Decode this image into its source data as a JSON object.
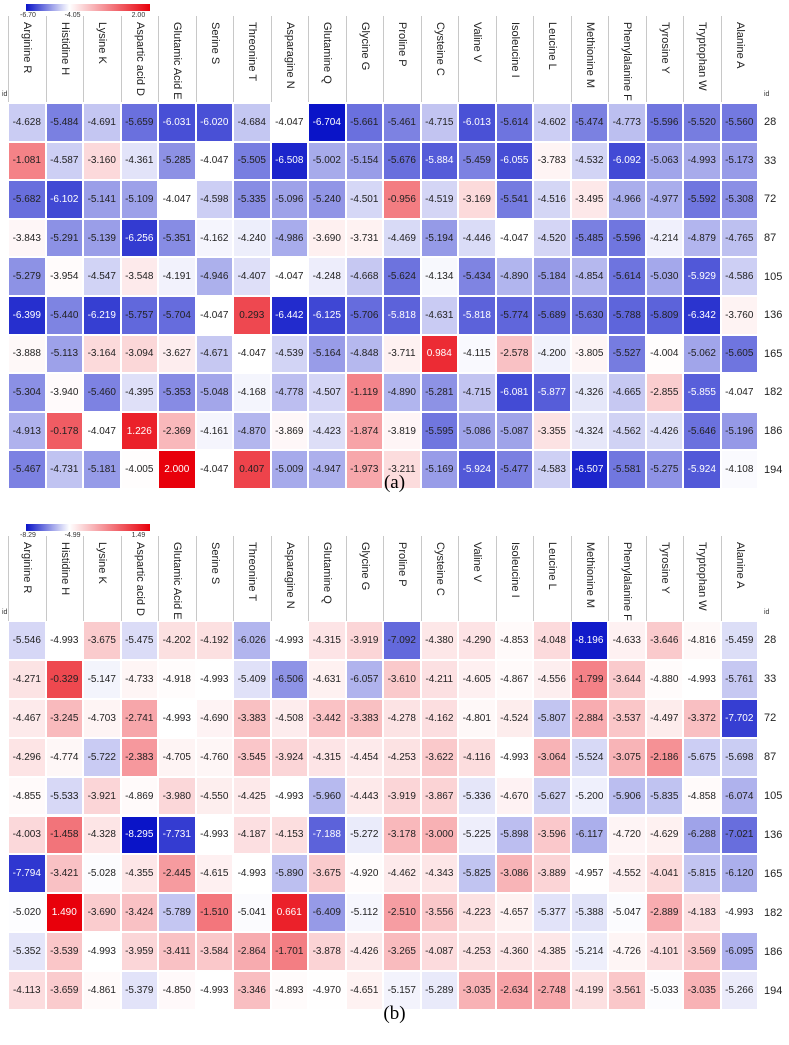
{
  "chart_data": [
    {
      "type": "heatmap",
      "caption": "(a)",
      "id_label": "id",
      "colorbar": {
        "min": -6.7,
        "mid": -4.05,
        "max": 2.0,
        "labels": [
          "-6.70",
          "-4.05",
          "2.00"
        ],
        "low_color": "#0a14c8",
        "mid_color": "#ffffff",
        "high_color": "#e8000b"
      },
      "columns": [
        "Arginine R",
        "Histidine H",
        "Lysine K",
        "Aspartic acid D",
        "Glutamic Acid E",
        "Serine S",
        "Threonine T",
        "Asparagine N",
        "Glutamine Q",
        "Glycine G",
        "Proline P",
        "Cysteine C",
        "Valine V",
        "Isoleucine I",
        "Leucine L",
        "Methionine M",
        "Phenylalanine F",
        "Tyrosine Y",
        "Tryptophan W",
        "Alanine A"
      ],
      "rows": [
        "28",
        "33",
        "72",
        "87",
        "105",
        "136",
        "165",
        "182",
        "186",
        "194"
      ],
      "values": [
        [
          "-4.628",
          "-5.484",
          "-4.691",
          "-5.659",
          "-6.031",
          "-6.020",
          "-4.684",
          "-4.047",
          "-6.704",
          "-5.661",
          "-5.461",
          "-4.715",
          "-6.013",
          "-5.614",
          "-4.602",
          "-5.474",
          "-4.773",
          "-5.596",
          "-5.520",
          "-5.560"
        ],
        [
          "-1.081",
          "-4.587",
          "-3.160",
          "-4.361",
          "-5.285",
          "-4.047",
          "-5.505",
          "-6.508",
          "-5.002",
          "-5.154",
          "-5.676",
          "-5.884",
          "-5.459",
          "-6.055",
          "-3.783",
          "-4.532",
          "-6.092",
          "-5.063",
          "-4.993",
          "-5.173"
        ],
        [
          "-5.682",
          "-6.102",
          "-5.141",
          "-5.109",
          "-4.047",
          "-4.598",
          "-5.335",
          "-5.096",
          "-5.240",
          "-4.501",
          "-0.956",
          "-4.519",
          "-3.169",
          "-5.541",
          "-4.516",
          "-3.495",
          "-4.966",
          "-4.977",
          "-5.592",
          "-5.308"
        ],
        [
          "-3.843",
          "-5.291",
          "-5.139",
          "-6.256",
          "-5.351",
          "-4.162",
          "-4.240",
          "-4.986",
          "-3.690",
          "-3.731",
          "-4.469",
          "-5.194",
          "-4.446",
          "-4.047",
          "-4.520",
          "-5.485",
          "-5.596",
          "-4.214",
          "-4.879",
          "-4.765"
        ],
        [
          "-5.279",
          "-3.954",
          "-4.547",
          "-3.548",
          "-4.191",
          "-4.946",
          "-4.407",
          "-4.047",
          "-4.248",
          "-4.668",
          "-5.624",
          "-4.134",
          "-5.434",
          "-4.890",
          "-5.184",
          "-4.854",
          "-5.614",
          "-5.030",
          "-5.929",
          "-4.586"
        ],
        [
          "-6.399",
          "-5.440",
          "-6.219",
          "-5.757",
          "-5.704",
          "-4.047",
          "0.293",
          "-6.442",
          "-6.125",
          "-5.706",
          "-5.818",
          "-4.631",
          "-5.818",
          "-5.774",
          "-5.689",
          "-5.630",
          "-5.788",
          "-5.809",
          "-6.342",
          "-3.760"
        ],
        [
          "-3.888",
          "-5.113",
          "-3.164",
          "-3.094",
          "-3.627",
          "-4.671",
          "-4.047",
          "-4.539",
          "-5.164",
          "-4.848",
          "-3.711",
          "0.984",
          "-4.115",
          "-2.578",
          "-4.200",
          "-3.805",
          "-5.527",
          "-4.004",
          "-5.062",
          "-5.605"
        ],
        [
          "-5.304",
          "-3.940",
          "-5.460",
          "-4.395",
          "-5.353",
          "-5.048",
          "-4.168",
          "-4.778",
          "-4.507",
          "-1.119",
          "-4.890",
          "-5.281",
          "-4.715",
          "-6.081",
          "-5.877",
          "-4.326",
          "-4.665",
          "-2.855",
          "-5.855",
          "-4.047"
        ],
        [
          "-4.913",
          "-0.178",
          "-4.047",
          "1.226",
          "-2.369",
          "-4.161",
          "-4.870",
          "-3.869",
          "-4.423",
          "-1.874",
          "-3.819",
          "-5.595",
          "-5.086",
          "-5.087",
          "-3.355",
          "-4.324",
          "-4.562",
          "-4.426",
          "-5.646",
          "-5.196"
        ],
        [
          "-5.467",
          "-4.731",
          "-5.181",
          "-4.005",
          "2.000",
          "-4.047",
          "0.407",
          "-5.009",
          "-4.947",
          "-1.973",
          "-3.211",
          "-5.169",
          "-5.924",
          "-5.477",
          "-4.583",
          "-6.507",
          "-5.581",
          "-5.275",
          "-5.924",
          "-4.108"
        ]
      ]
    },
    {
      "type": "heatmap",
      "caption": "(b)",
      "id_label": "id",
      "colorbar": {
        "min": -8.29,
        "mid": -4.99,
        "max": 1.49,
        "labels": [
          "-8.29",
          "-4.99",
          "1.49"
        ],
        "low_color": "#0a14c8",
        "mid_color": "#ffffff",
        "high_color": "#e8000b"
      },
      "columns": [
        "Arginine R",
        "Histidine H",
        "Lysine K",
        "Aspartic acid D",
        "Glutamic Acid E",
        "Serine S",
        "Threonine T",
        "Asparagine N",
        "Glutamine Q",
        "Glycine G",
        "Proline P",
        "Cysteine C",
        "Valine V",
        "Isoleucine I",
        "Leucine L",
        "Methionine M",
        "Phenylalanine F",
        "Tyrosine Y",
        "Tryptophan W",
        "Alanine A"
      ],
      "rows": [
        "28",
        "33",
        "72",
        "87",
        "105",
        "136",
        "165",
        "182",
        "186",
        "194"
      ],
      "values": [
        [
          "-5.546",
          "-4.993",
          "-3.675",
          "-5.475",
          "-4.202",
          "-4.192",
          "-6.026",
          "-4.993",
          "-4.315",
          "-3.919",
          "-7.092",
          "-4.380",
          "-4.290",
          "-4.853",
          "-4.048",
          "-8.196",
          "-4.633",
          "-3.646",
          "-4.816",
          "-5.459"
        ],
        [
          "-4.271",
          "-0.329",
          "-5.147",
          "-4.733",
          "-4.918",
          "-4.993",
          "-5.409",
          "-6.506",
          "-4.631",
          "-6.057",
          "-3.610",
          "-4.211",
          "-4.605",
          "-4.867",
          "-4.556",
          "-1.799",
          "-3.644",
          "-4.880",
          "-4.993",
          "-5.761"
        ],
        [
          "-4.467",
          "-3.245",
          "-4.703",
          "-2.741",
          "-4.993",
          "-4.690",
          "-3.383",
          "-4.508",
          "-3.442",
          "-3.383",
          "-4.278",
          "-4.162",
          "-4.801",
          "-4.524",
          "-5.807",
          "-2.884",
          "-3.537",
          "-4.497",
          "-3.372",
          "-7.702"
        ],
        [
          "-4.296",
          "-4.774",
          "-5.722",
          "-2.383",
          "-4.705",
          "-4.760",
          "-3.545",
          "-3.924",
          "-4.315",
          "-4.454",
          "-4.253",
          "-3.622",
          "-4.116",
          "-4.993",
          "-3.064",
          "-5.524",
          "-3.075",
          "-2.186",
          "-5.675",
          "-5.698"
        ],
        [
          "-4.855",
          "-5.533",
          "-3.921",
          "-4.869",
          "-3.980",
          "-4.550",
          "-4.425",
          "-4.993",
          "-5.960",
          "-4.443",
          "-3.919",
          "-3.867",
          "-5.336",
          "-4.670",
          "-5.627",
          "-5.200",
          "-5.906",
          "-5.835",
          "-4.858",
          "-6.074"
        ],
        [
          "-4.003",
          "-1.458",
          "-4.328",
          "-8.295",
          "-7.731",
          "-4.993",
          "-4.187",
          "-4.153",
          "-7.188",
          "-5.272",
          "-3.178",
          "-3.000",
          "-5.225",
          "-5.898",
          "-3.596",
          "-6.117",
          "-4.720",
          "-4.629",
          "-6.288",
          "-7.021"
        ],
        [
          "-7.794",
          "-3.421",
          "-5.028",
          "-4.355",
          "-2.445",
          "-4.615",
          "-4.993",
          "-5.890",
          "-3.675",
          "-4.920",
          "-4.462",
          "-4.343",
          "-5.825",
          "-3.086",
          "-3.889",
          "-4.957",
          "-4.552",
          "-4.041",
          "-5.815",
          "-6.120"
        ],
        [
          "-5.020",
          "1.490",
          "-3.690",
          "-3.424",
          "-5.789",
          "-1.510",
          "-5.041",
          "0.661",
          "-6.409",
          "-5.112",
          "-2.510",
          "-3.556",
          "-4.223",
          "-4.657",
          "-5.377",
          "-5.388",
          "-5.047",
          "-2.889",
          "-4.183",
          "-4.993"
        ],
        [
          "-5.352",
          "-3.539",
          "-4.993",
          "-3.959",
          "-3.411",
          "-3.584",
          "-2.864",
          "-1.701",
          "-3.878",
          "-4.426",
          "-3.265",
          "-4.087",
          "-4.253",
          "-4.360",
          "-4.385",
          "-5.214",
          "-4.726",
          "-4.101",
          "-3.569",
          "-6.095"
        ],
        [
          "-4.113",
          "-3.659",
          "-4.861",
          "-5.379",
          "-4.850",
          "-4.993",
          "-3.346",
          "-4.893",
          "-4.970",
          "-4.651",
          "-5.157",
          "-5.289",
          "-3.035",
          "-2.634",
          "-2.748",
          "-4.199",
          "-3.561",
          "-5.033",
          "-3.035",
          "-5.266"
        ]
      ]
    }
  ]
}
